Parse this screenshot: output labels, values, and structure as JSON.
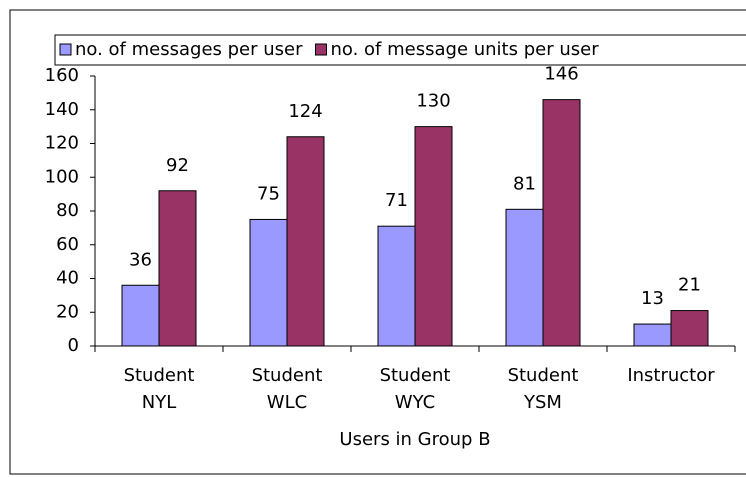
{
  "chart_data": {
    "type": "bar",
    "categories": [
      "Student NYL",
      "Student WLC",
      "Student WYC",
      "Student YSM",
      "Instructor"
    ],
    "series": [
      {
        "name": "no. of messages per user",
        "color": "#9999ff",
        "values": [
          36,
          75,
          71,
          81,
          13
        ]
      },
      {
        "name": "no. of message units per user",
        "color": "#993366",
        "values": [
          92,
          124,
          130,
          146,
          21
        ]
      }
    ],
    "xlabel": "Users in Group B",
    "ylim": [
      0,
      160
    ],
    "yticks": [
      0,
      20,
      40,
      60,
      80,
      100,
      120,
      140,
      160
    ],
    "grid": false,
    "legend": "top"
  }
}
